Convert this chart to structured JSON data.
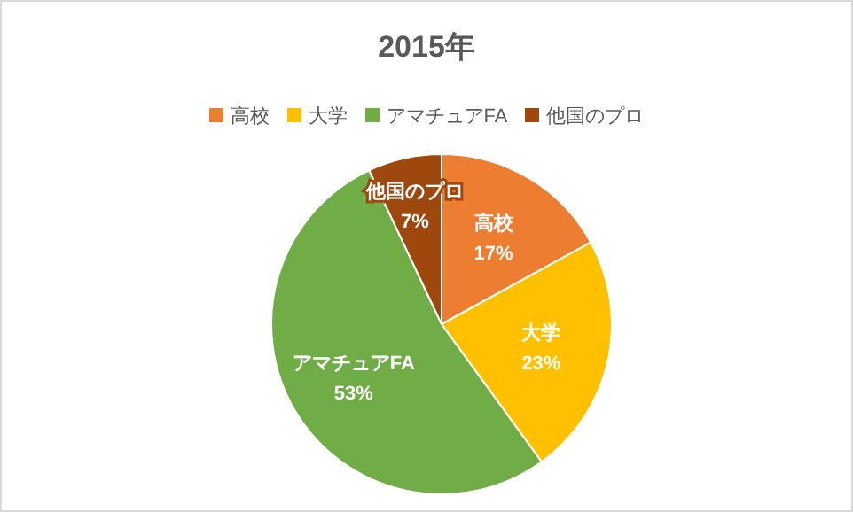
{
  "chart_data": {
    "type": "pie",
    "title": "2015年",
    "categories": [
      "高校",
      "大学",
      "アマチュアFA",
      "他国のプロ"
    ],
    "values": [
      17,
      23,
      53,
      7
    ],
    "colors": [
      "#ed7d31",
      "#ffc000",
      "#70ad47",
      "#9e480e"
    ],
    "value_labels": [
      "17%",
      "23%",
      "53%",
      "7%"
    ],
    "legend": "top"
  }
}
